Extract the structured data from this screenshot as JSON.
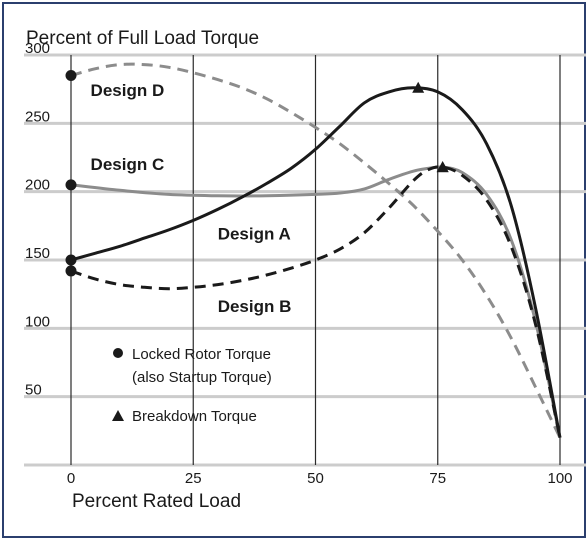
{
  "chart_data": {
    "type": "line",
    "title": "Percent of Full Load Torque",
    "xlabel": "Percent Rated Load",
    "ylabel": "",
    "xlim": [
      0,
      100
    ],
    "ylim": [
      0,
      300
    ],
    "x_ticks": [
      0,
      25,
      50,
      75,
      100
    ],
    "y_ticks": [
      50,
      100,
      150,
      200,
      250,
      300
    ],
    "x_tick_labels": [
      "0",
      "25",
      "50",
      "75",
      "100"
    ],
    "y_tick_labels": [
      "50",
      "100",
      "150",
      "200",
      "250",
      "300"
    ],
    "grid": true,
    "series": [
      {
        "name": "Design D",
        "style": "dashed",
        "color": "#8c8c8c",
        "x": [
          0,
          5,
          10,
          15,
          20,
          25,
          30,
          35,
          40,
          45,
          50,
          55,
          60,
          65,
          70,
          75,
          80,
          85,
          90,
          95,
          100
        ],
        "y": [
          285,
          290,
          293,
          293,
          291,
          287,
          282,
          276,
          268,
          258,
          247,
          235,
          221,
          206,
          190,
          171,
          150,
          124,
          93,
          57,
          20
        ],
        "locked_rotor": [
          0,
          285
        ]
      },
      {
        "name": "Design C",
        "style": "solid",
        "color": "#8c8c8c",
        "x": [
          0,
          10,
          20,
          30,
          40,
          50,
          55,
          60,
          65,
          70,
          73,
          76,
          80,
          85,
          90,
          95,
          100
        ],
        "y": [
          205,
          201,
          198,
          197,
          197,
          198,
          199,
          202,
          209,
          215,
          217,
          218,
          214,
          198,
          165,
          105,
          20
        ],
        "locked_rotor": [
          0,
          205
        ],
        "breakdown": [
          76,
          218
        ]
      },
      {
        "name": "Design A",
        "style": "solid",
        "color": "#1a1a1a",
        "x": [
          0,
          5,
          10,
          15,
          20,
          25,
          30,
          35,
          40,
          45,
          50,
          55,
          60,
          65,
          70,
          75,
          80,
          85,
          90,
          95,
          100
        ],
        "y": [
          150,
          155,
          160,
          166,
          172,
          179,
          187,
          196,
          206,
          217,
          231,
          248,
          265,
          273,
          276,
          273,
          260,
          235,
          190,
          115,
          20
        ],
        "locked_rotor": [
          0,
          150
        ],
        "breakdown": [
          71,
          276
        ]
      },
      {
        "name": "Design B",
        "style": "dashed",
        "color": "#1a1a1a",
        "x": [
          0,
          5,
          10,
          15,
          20,
          25,
          30,
          35,
          40,
          45,
          50,
          55,
          60,
          65,
          70,
          73,
          76,
          80,
          85,
          90,
          95,
          100
        ],
        "y": [
          142,
          136,
          132,
          130,
          129,
          130,
          132,
          135,
          139,
          144,
          150,
          158,
          170,
          188,
          208,
          216,
          218,
          212,
          194,
          160,
          103,
          20
        ],
        "locked_rotor": [
          0,
          142
        ],
        "breakdown": [
          76,
          218
        ]
      }
    ],
    "series_labels": [
      {
        "text": "Design D",
        "x": 4,
        "y": 270
      },
      {
        "text": "Design C",
        "x": 4,
        "y": 216
      },
      {
        "text": "Design A",
        "x": 30,
        "y": 165
      },
      {
        "text": "Design B",
        "x": 30,
        "y": 112
      }
    ],
    "legend": {
      "placement": "lower-left",
      "items": [
        {
          "marker": "circle",
          "line1": "Locked Rotor Torque",
          "line2": "(also Startup Torque)"
        },
        {
          "marker": "triangle",
          "line1": "Breakdown Torque",
          "line2": ""
        }
      ]
    }
  }
}
